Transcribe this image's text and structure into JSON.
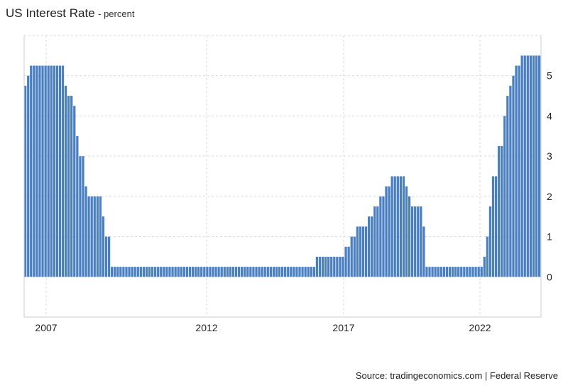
{
  "header": {
    "title": "US Interest Rate",
    "subtitle": "- percent"
  },
  "footer": {
    "source": "Source: tradingeconomics.com | Federal Reserve"
  },
  "colors": {
    "bar": "#4a7fc1",
    "grid": "#d9d9d9",
    "axis": "#cccccc"
  },
  "chart_data": {
    "type": "bar",
    "title": "US Interest Rate",
    "subtitle": "- percent",
    "xlabel": "",
    "ylabel": "",
    "x_ticks": [
      "2007",
      "2012",
      "2017",
      "2022"
    ],
    "y_ticks": [
      0,
      1,
      2,
      3,
      4,
      5
    ],
    "ylim": [
      -1,
      6
    ],
    "grid": true,
    "y_axis_side": "right",
    "series": [
      {
        "values": [
          4.75,
          5.0,
          5.25,
          5.25,
          5.25,
          5.25,
          5.25,
          5.25,
          5.25,
          5.25,
          5.25,
          5.25,
          5.25,
          5.25,
          4.75,
          4.5,
          4.5,
          4.25,
          3.5,
          3.0,
          3.0,
          2.25,
          2.0,
          2.0,
          2.0,
          2.0,
          2.0,
          1.5,
          1.0,
          1.0,
          0.25,
          0.25,
          0.25,
          0.25,
          0.25,
          0.25,
          0.25,
          0.25,
          0.25,
          0.25,
          0.25,
          0.25,
          0.25,
          0.25,
          0.25,
          0.25,
          0.25,
          0.25,
          0.25,
          0.25,
          0.25,
          0.25,
          0.25,
          0.25,
          0.25,
          0.25,
          0.25,
          0.25,
          0.25,
          0.25,
          0.25,
          0.25,
          0.25,
          0.25,
          0.25,
          0.25,
          0.25,
          0.25,
          0.25,
          0.25,
          0.25,
          0.25,
          0.25,
          0.25,
          0.25,
          0.25,
          0.25,
          0.25,
          0.25,
          0.25,
          0.25,
          0.25,
          0.25,
          0.25,
          0.25,
          0.25,
          0.25,
          0.25,
          0.25,
          0.25,
          0.25,
          0.25,
          0.25,
          0.25,
          0.25,
          0.25,
          0.25,
          0.25,
          0.25,
          0.25,
          0.25,
          0.5,
          0.5,
          0.5,
          0.5,
          0.5,
          0.5,
          0.5,
          0.5,
          0.5,
          0.5,
          0.75,
          0.75,
          1.0,
          1.0,
          1.25,
          1.25,
          1.25,
          1.25,
          1.5,
          1.5,
          1.75,
          1.75,
          2.0,
          2.0,
          2.25,
          2.25,
          2.5,
          2.5,
          2.5,
          2.5,
          2.5,
          2.25,
          2.0,
          1.75,
          1.75,
          1.75,
          1.75,
          1.25,
          0.25,
          0.25,
          0.25,
          0.25,
          0.25,
          0.25,
          0.25,
          0.25,
          0.25,
          0.25,
          0.25,
          0.25,
          0.25,
          0.25,
          0.25,
          0.25,
          0.25,
          0.25,
          0.25,
          0.25,
          0.5,
          1.0,
          1.75,
          2.5,
          2.5,
          3.25,
          3.25,
          4.0,
          4.5,
          4.75,
          5.0,
          5.25,
          5.25,
          5.5,
          5.5,
          5.5,
          5.5,
          5.5,
          5.5,
          5.5
        ]
      }
    ]
  }
}
